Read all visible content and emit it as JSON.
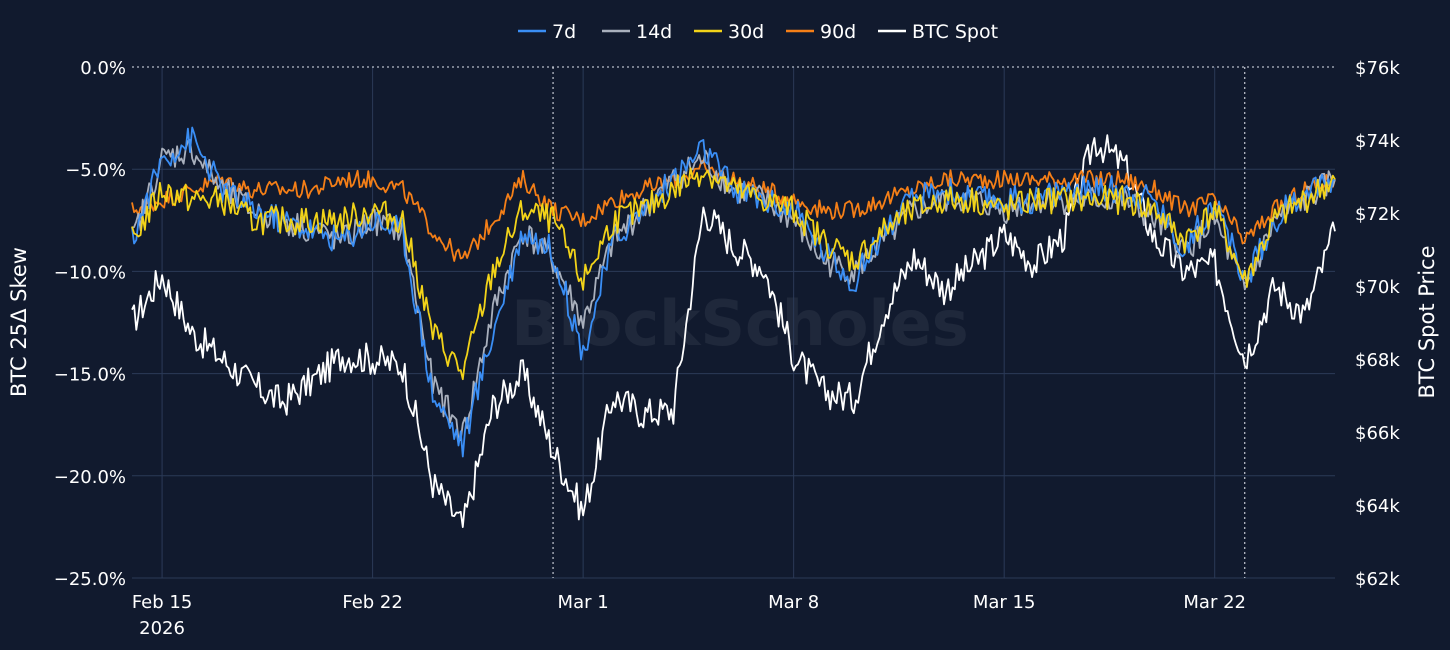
{
  "chart_data": {
    "type": "line",
    "title": "",
    "watermark": "BlockScholes",
    "legend": {
      "placement": "top-center",
      "entries": [
        {
          "label": "7d",
          "color": "#3a8ef5"
        },
        {
          "label": "14d",
          "color": "#a9b0bd"
        },
        {
          "label": "30d",
          "color": "#f2d319"
        },
        {
          "label": "90d",
          "color": "#f57f17"
        },
        {
          "label": "BTC Spot",
          "color": "#ffffff"
        }
      ]
    },
    "y_left": {
      "label": "BTC 25Δ Skew",
      "range": [
        -25,
        0
      ],
      "ticks": [
        {
          "value": 0,
          "label": "0.0%"
        },
        {
          "value": -5,
          "label": "−5.0%"
        },
        {
          "value": -10,
          "label": "−10.0%"
        },
        {
          "value": -15,
          "label": "−15.0%"
        },
        {
          "value": -20,
          "label": "−20.0%"
        },
        {
          "value": -25,
          "label": "−25.0%"
        }
      ]
    },
    "y_right": {
      "label": "BTC Spot Price",
      "range": [
        62000,
        76000
      ],
      "ticks": [
        {
          "value": 76000,
          "label": "$76k"
        },
        {
          "value": 74000,
          "label": "$74k"
        },
        {
          "value": 72000,
          "label": "$72k"
        },
        {
          "value": 70000,
          "label": "$70k"
        },
        {
          "value": 68000,
          "label": "$68k"
        },
        {
          "value": 66000,
          "label": "$66k"
        },
        {
          "value": 64000,
          "label": "$64k"
        },
        {
          "value": 62000,
          "label": "$62k"
        }
      ]
    },
    "x_axis": {
      "range": [
        "2026-02-14",
        "2026-03-26"
      ],
      "ticks": [
        {
          "date": "2026-02-15",
          "label": "Feb 15",
          "sublabel": "2026"
        },
        {
          "date": "2026-02-22",
          "label": "Feb 22",
          "sublabel": ""
        },
        {
          "date": "2026-03-01",
          "label": "Mar 1",
          "sublabel": ""
        },
        {
          "date": "2026-03-08",
          "label": "Mar 8",
          "sublabel": ""
        },
        {
          "date": "2026-03-15",
          "label": "Mar 15",
          "sublabel": ""
        },
        {
          "date": "2026-03-22",
          "label": "Mar 22",
          "sublabel": ""
        }
      ],
      "markers": [
        "2026-02-28",
        "2026-03-23"
      ]
    },
    "grid": true,
    "x": [
      "2026-02-14",
      "2026-02-15",
      "2026-02-16",
      "2026-02-17",
      "2026-02-18",
      "2026-02-19",
      "2026-02-20",
      "2026-02-21",
      "2026-02-22",
      "2026-02-23",
      "2026-02-24",
      "2026-02-25",
      "2026-02-26",
      "2026-02-27",
      "2026-02-28",
      "2026-03-01",
      "2026-03-02",
      "2026-03-03",
      "2026-03-04",
      "2026-03-05",
      "2026-03-06",
      "2026-03-07",
      "2026-03-08",
      "2026-03-09",
      "2026-03-10",
      "2026-03-11",
      "2026-03-12",
      "2026-03-13",
      "2026-03-14",
      "2026-03-15",
      "2026-03-16",
      "2026-03-17",
      "2026-03-18",
      "2026-03-19",
      "2026-03-20",
      "2026-03-21",
      "2026-03-22",
      "2026-03-23",
      "2026-03-24",
      "2026-03-25",
      "2026-03-26"
    ],
    "series": [
      {
        "name": "7d",
        "axis": "left",
        "color": "#3a8ef5",
        "values": [
          -8.5,
          -4.5,
          -3.5,
          -6.0,
          -7.0,
          -7.5,
          -8.0,
          -8.5,
          -7.5,
          -8.0,
          -16.0,
          -18.5,
          -13.0,
          -8.0,
          -9.0,
          -14.0,
          -8.5,
          -7.0,
          -5.5,
          -4.0,
          -6.0,
          -6.5,
          -7.0,
          -9.0,
          -10.5,
          -8.0,
          -6.5,
          -6.0,
          -6.5,
          -6.5,
          -6.5,
          -6.0,
          -6.0,
          -6.0,
          -6.5,
          -9.0,
          -6.5,
          -10.5,
          -7.5,
          -6.0,
          -5.5
        ]
      },
      {
        "name": "14d",
        "axis": "left",
        "color": "#a9b0bd",
        "values": [
          -8.5,
          -4.5,
          -4.0,
          -6.0,
          -7.0,
          -7.5,
          -8.0,
          -8.5,
          -7.5,
          -8.0,
          -15.5,
          -18.0,
          -12.0,
          -8.0,
          -9.5,
          -12.5,
          -8.5,
          -7.0,
          -5.5,
          -4.5,
          -6.0,
          -6.5,
          -7.5,
          -9.5,
          -10.0,
          -8.5,
          -7.0,
          -6.5,
          -6.5,
          -7.0,
          -6.5,
          -6.5,
          -6.5,
          -6.5,
          -7.5,
          -9.0,
          -7.5,
          -11.0,
          -7.5,
          -6.5,
          -5.5
        ]
      },
      {
        "name": "30d",
        "axis": "left",
        "color": "#f2d319",
        "values": [
          -8.5,
          -6.0,
          -6.5,
          -6.5,
          -7.5,
          -7.5,
          -7.5,
          -7.5,
          -7.0,
          -7.5,
          -13.0,
          -15.0,
          -10.0,
          -7.0,
          -7.5,
          -10.5,
          -7.5,
          -7.0,
          -6.0,
          -5.0,
          -6.0,
          -6.5,
          -7.0,
          -8.5,
          -9.5,
          -8.0,
          -7.0,
          -6.5,
          -6.5,
          -7.0,
          -6.5,
          -6.5,
          -6.5,
          -6.5,
          -7.0,
          -8.5,
          -7.0,
          -10.5,
          -7.5,
          -6.5,
          -5.5
        ]
      },
      {
        "name": "90d",
        "axis": "left",
        "color": "#f57f17",
        "values": [
          -7.0,
          -6.5,
          -6.0,
          -5.5,
          -6.0,
          -6.0,
          -6.0,
          -5.5,
          -5.5,
          -6.0,
          -8.0,
          -9.5,
          -7.5,
          -5.5,
          -7.0,
          -7.5,
          -6.5,
          -6.0,
          -5.5,
          -5.0,
          -5.5,
          -6.0,
          -6.5,
          -7.0,
          -7.0,
          -6.5,
          -6.0,
          -5.5,
          -5.5,
          -5.5,
          -5.5,
          -5.5,
          -5.5,
          -5.5,
          -6.0,
          -7.0,
          -6.5,
          -8.5,
          -7.0,
          -6.0,
          -5.5
        ]
      },
      {
        "name": "BTC Spot",
        "axis": "right",
        "color": "#ffffff",
        "values": [
          69000,
          70300,
          68700,
          68000,
          67300,
          66800,
          67400,
          68100,
          68000,
          67800,
          64600,
          63400,
          66700,
          67600,
          65500,
          63800,
          67000,
          66500,
          66600,
          72100,
          71100,
          70500,
          68100,
          67100,
          66900,
          69300,
          70800,
          69900,
          70600,
          71400,
          70600,
          71400,
          74000,
          73300,
          71300,
          70400,
          70600,
          68000,
          70000,
          69200,
          71500
        ]
      }
    ]
  }
}
